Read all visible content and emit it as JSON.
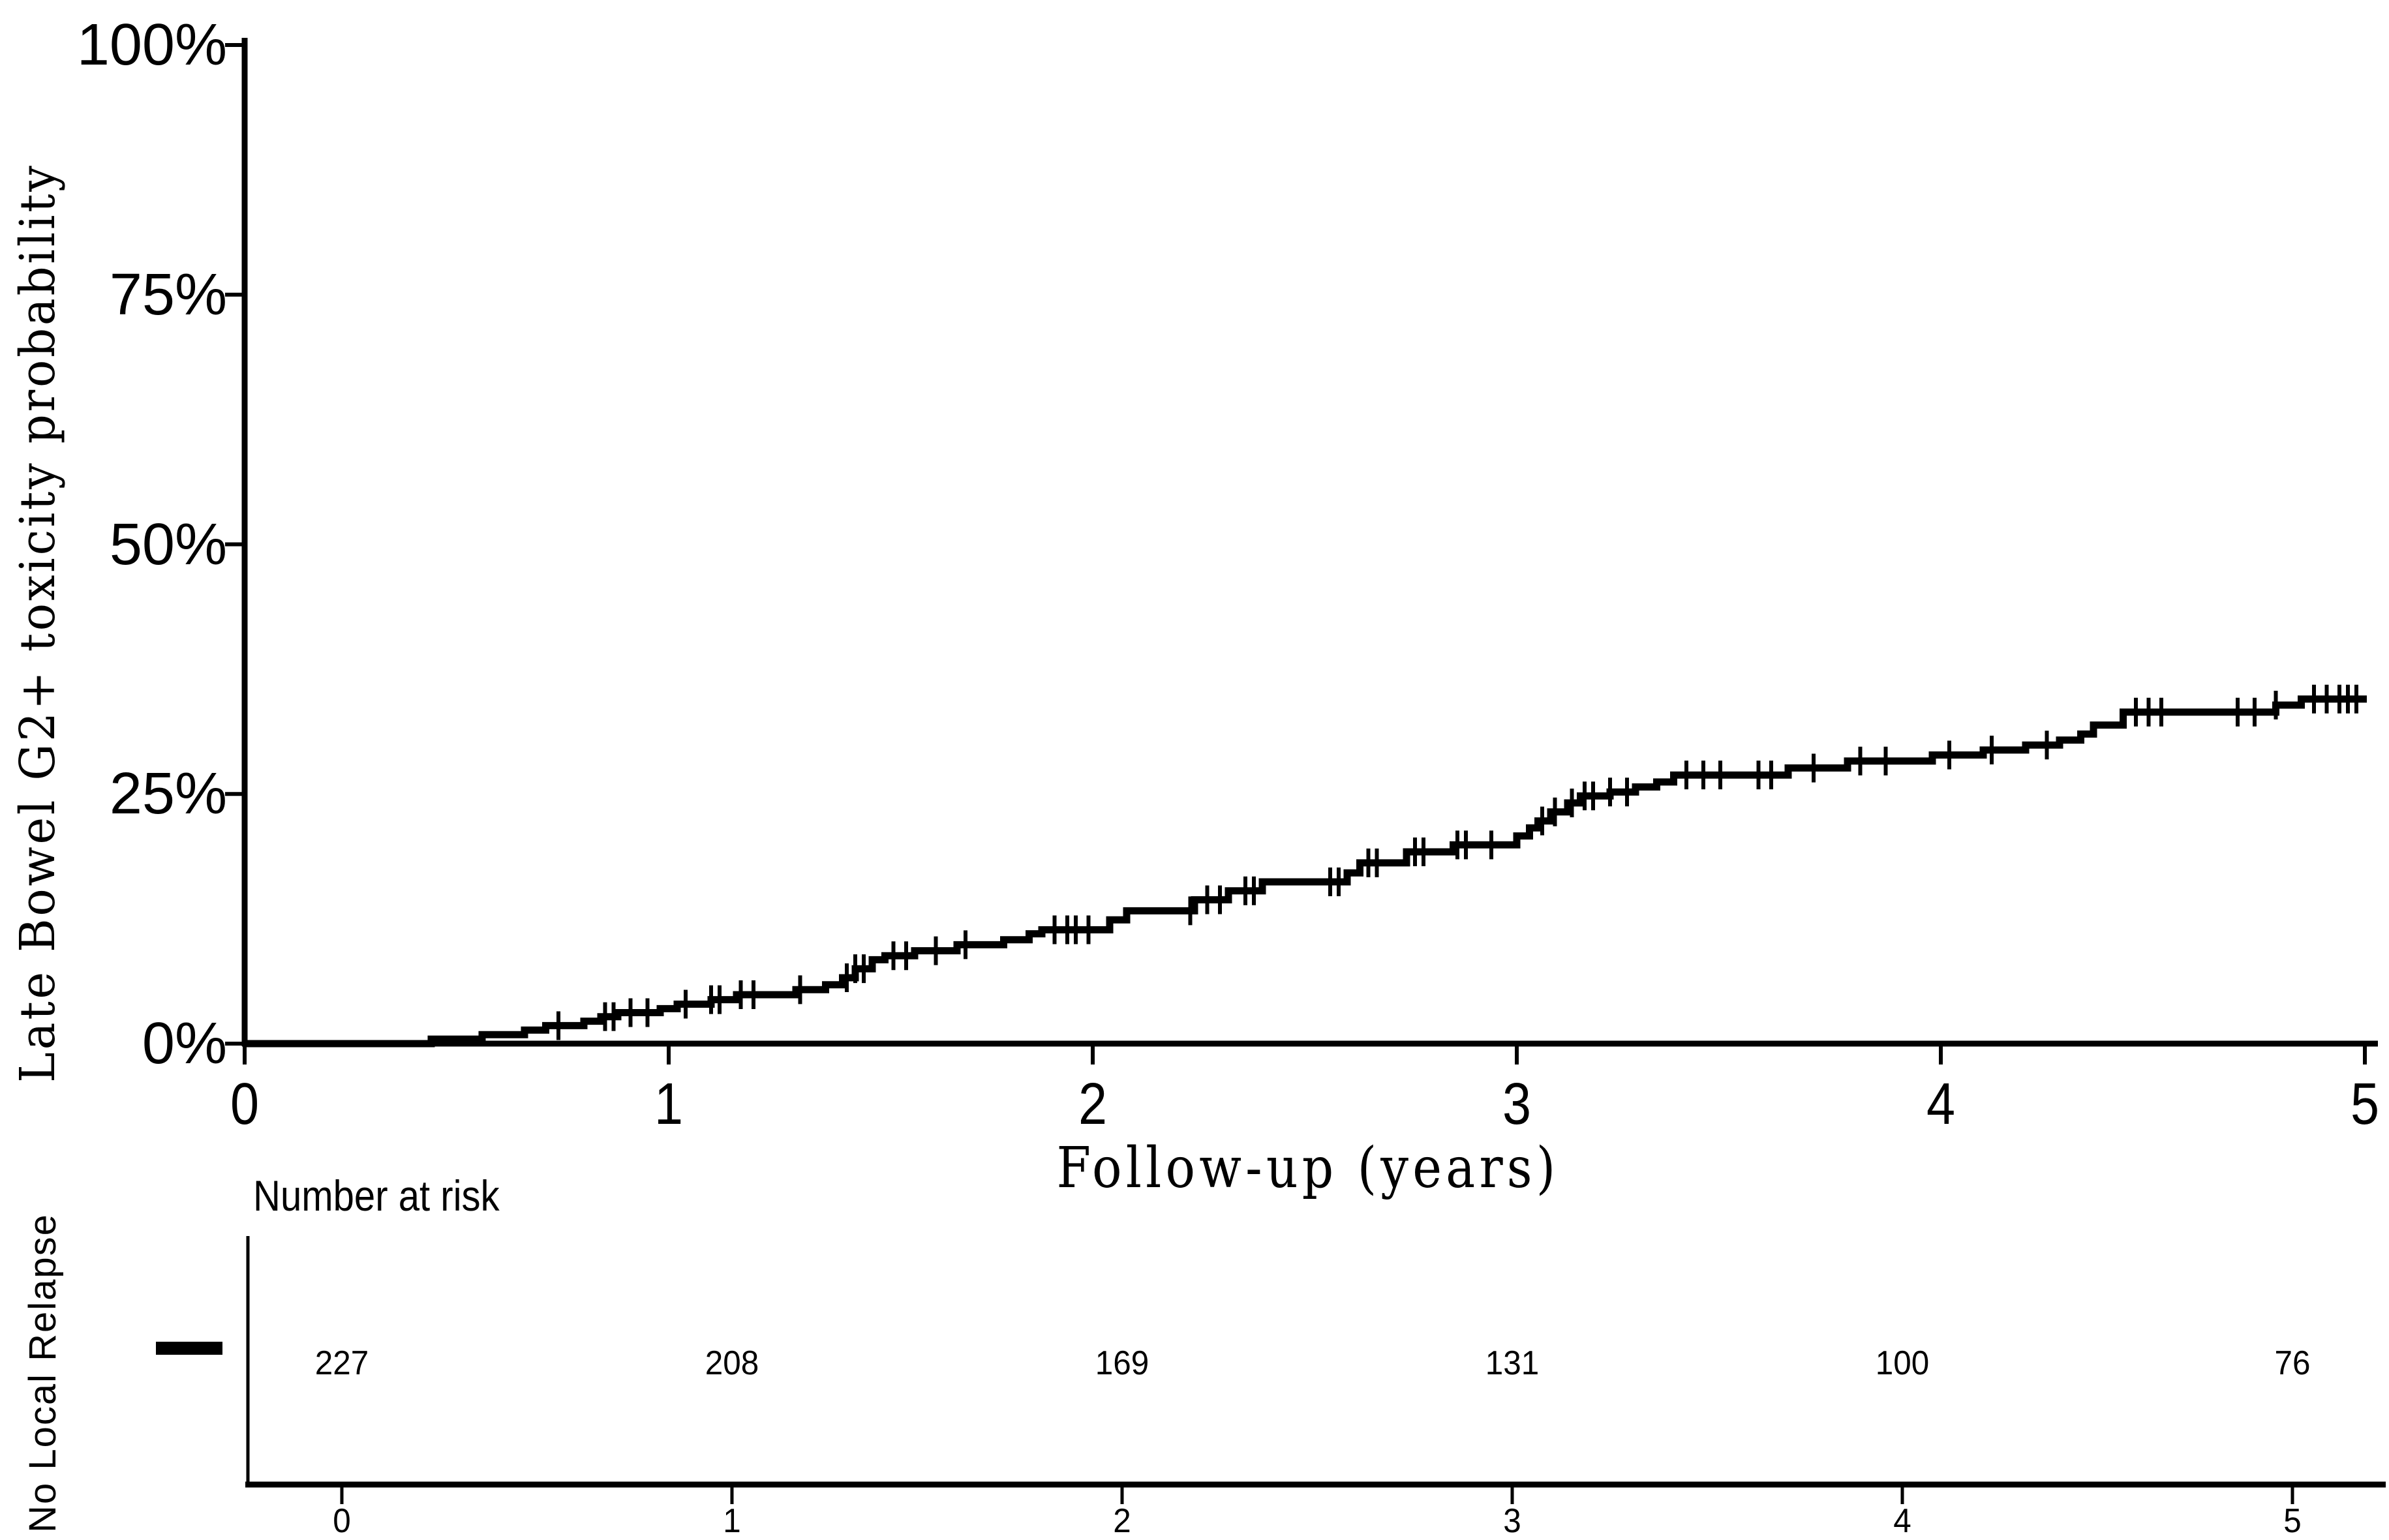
{
  "colors": {
    "foreground": "#000000",
    "background": "#ffffff"
  },
  "chart_data": {
    "type": "line",
    "variant": "kaplan_meier_step_cumulative_incidence",
    "title": "",
    "xlabel": "Follow-up (years)",
    "ylabel": "Late Bowel G2+ toxicity probability",
    "xlim_years": [
      0,
      5
    ],
    "ylim_percent": [
      0,
      100
    ],
    "grid": false,
    "legend_position": "left-of-risk-table-row",
    "x_ticks": [
      {
        "value": 0,
        "label": "0"
      },
      {
        "value": 1,
        "label": "1"
      },
      {
        "value": 2,
        "label": "2"
      },
      {
        "value": 3,
        "label": "3"
      },
      {
        "value": 4,
        "label": "4"
      },
      {
        "value": 5,
        "label": "5"
      }
    ],
    "y_ticks": [
      {
        "value": 0,
        "label": "0%"
      },
      {
        "value": 25,
        "label": "25%"
      },
      {
        "value": 50,
        "label": "50%"
      },
      {
        "value": 75,
        "label": "75%"
      },
      {
        "value": 100,
        "label": "100%"
      }
    ],
    "series": [
      {
        "name": "No Local Relapse",
        "color": "#000000",
        "step_points_time_percent": [
          [
            0.0,
            0.0
          ],
          [
            0.44,
            0.45
          ],
          [
            0.56,
            0.9
          ],
          [
            0.66,
            1.35
          ],
          [
            0.71,
            1.8
          ],
          [
            0.8,
            2.25
          ],
          [
            0.84,
            2.7
          ],
          [
            0.88,
            3.1
          ],
          [
            0.98,
            3.5
          ],
          [
            1.02,
            3.95
          ],
          [
            1.1,
            4.4
          ],
          [
            1.16,
            4.9
          ],
          [
            1.3,
            5.4
          ],
          [
            1.37,
            5.9
          ],
          [
            1.41,
            6.6
          ],
          [
            1.44,
            7.5
          ],
          [
            1.48,
            8.4
          ],
          [
            1.51,
            8.8
          ],
          [
            1.58,
            9.3
          ],
          [
            1.68,
            9.9
          ],
          [
            1.79,
            10.4
          ],
          [
            1.85,
            11.0
          ],
          [
            1.88,
            11.4
          ],
          [
            2.04,
            12.4
          ],
          [
            2.08,
            13.3
          ],
          [
            2.24,
            14.4
          ],
          [
            2.32,
            15.3
          ],
          [
            2.4,
            16.2
          ],
          [
            2.6,
            17.1
          ],
          [
            2.63,
            18.1
          ],
          [
            2.74,
            19.2
          ],
          [
            2.85,
            19.9
          ],
          [
            3.0,
            20.8
          ],
          [
            3.03,
            21.6
          ],
          [
            3.05,
            22.3
          ],
          [
            3.08,
            23.2
          ],
          [
            3.12,
            24.1
          ],
          [
            3.15,
            24.8
          ],
          [
            3.22,
            25.2
          ],
          [
            3.28,
            25.7
          ],
          [
            3.33,
            26.2
          ],
          [
            3.37,
            26.9
          ],
          [
            3.64,
            27.6
          ],
          [
            3.78,
            28.3
          ],
          [
            3.98,
            28.9
          ],
          [
            4.1,
            29.4
          ],
          [
            4.2,
            29.9
          ],
          [
            4.28,
            30.4
          ],
          [
            4.33,
            31.0
          ],
          [
            4.36,
            31.9
          ],
          [
            4.43,
            33.2
          ],
          [
            4.79,
            33.9
          ],
          [
            4.85,
            34.5
          ]
        ],
        "censor_times_years": [
          0.74,
          0.85,
          0.87,
          0.91,
          0.95,
          1.04,
          1.1,
          1.12,
          1.17,
          1.2,
          1.31,
          1.42,
          1.44,
          1.46,
          1.53,
          1.56,
          1.63,
          1.7,
          1.91,
          1.94,
          1.96,
          1.99,
          2.23,
          2.27,
          2.3,
          2.36,
          2.38,
          2.56,
          2.58,
          2.65,
          2.67,
          2.76,
          2.78,
          2.86,
          2.88,
          2.94,
          3.06,
          3.09,
          3.13,
          3.16,
          3.18,
          3.22,
          3.26,
          3.4,
          3.44,
          3.48,
          3.57,
          3.6,
          3.7,
          3.81,
          3.87,
          4.02,
          4.12,
          4.25,
          4.46,
          4.49,
          4.52,
          4.7,
          4.74,
          4.79,
          4.88,
          4.91,
          4.94,
          4.96,
          4.98
        ]
      }
    ]
  },
  "risk_table": {
    "title": "Number at risk",
    "row_label": "No Local Relapse",
    "entries": [
      {
        "time_label": "0",
        "count": "227"
      },
      {
        "time_label": "1",
        "count": "208"
      },
      {
        "time_label": "2",
        "count": "169"
      },
      {
        "time_label": "3",
        "count": "131"
      },
      {
        "time_label": "4",
        "count": "100"
      },
      {
        "time_label": "5",
        "count": "76"
      }
    ]
  }
}
